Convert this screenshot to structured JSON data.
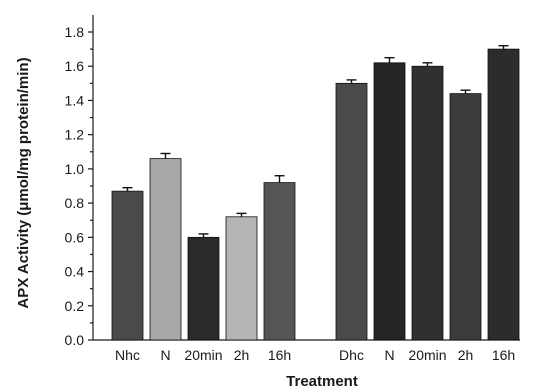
{
  "chart_data": {
    "type": "bar",
    "xlabel": "Treatment",
    "ylabel": "APX Activity (μmol/mg protein/min)",
    "ylim": [
      0,
      1.8
    ],
    "yticks": [
      "0.0",
      "0.2",
      "0.4",
      "0.6",
      "0.8",
      "1.0",
      "1.2",
      "1.4",
      "1.6",
      "1.8"
    ],
    "grid": false,
    "legend": "none",
    "groups": [
      {
        "bars": [
          {
            "label": "Nhc",
            "value": 0.87,
            "error": 0.02,
            "color": "#4a4a4a"
          },
          {
            "label": "N",
            "value": 1.06,
            "error": 0.03,
            "color": "#a8a8a8"
          },
          {
            "label": "20min",
            "value": 0.6,
            "error": 0.02,
            "color": "#2a2a2a"
          },
          {
            "label": "2h",
            "value": 0.72,
            "error": 0.02,
            "color": "#b5b5b5"
          },
          {
            "label": "16h",
            "value": 0.92,
            "error": 0.04,
            "color": "#555555"
          }
        ]
      },
      {
        "bars": [
          {
            "label": "Dhc",
            "value": 1.5,
            "error": 0.02,
            "color": "#4a4a4a"
          },
          {
            "label": "N",
            "value": 1.62,
            "error": 0.03,
            "color": "#252525"
          },
          {
            "label": "20min",
            "value": 1.6,
            "error": 0.02,
            "color": "#303030"
          },
          {
            "label": "2h",
            "value": 1.44,
            "error": 0.02,
            "color": "#3c3c3c"
          },
          {
            "label": "16h",
            "value": 1.7,
            "error": 0.02,
            "color": "#2c2c2c"
          }
        ]
      }
    ]
  }
}
